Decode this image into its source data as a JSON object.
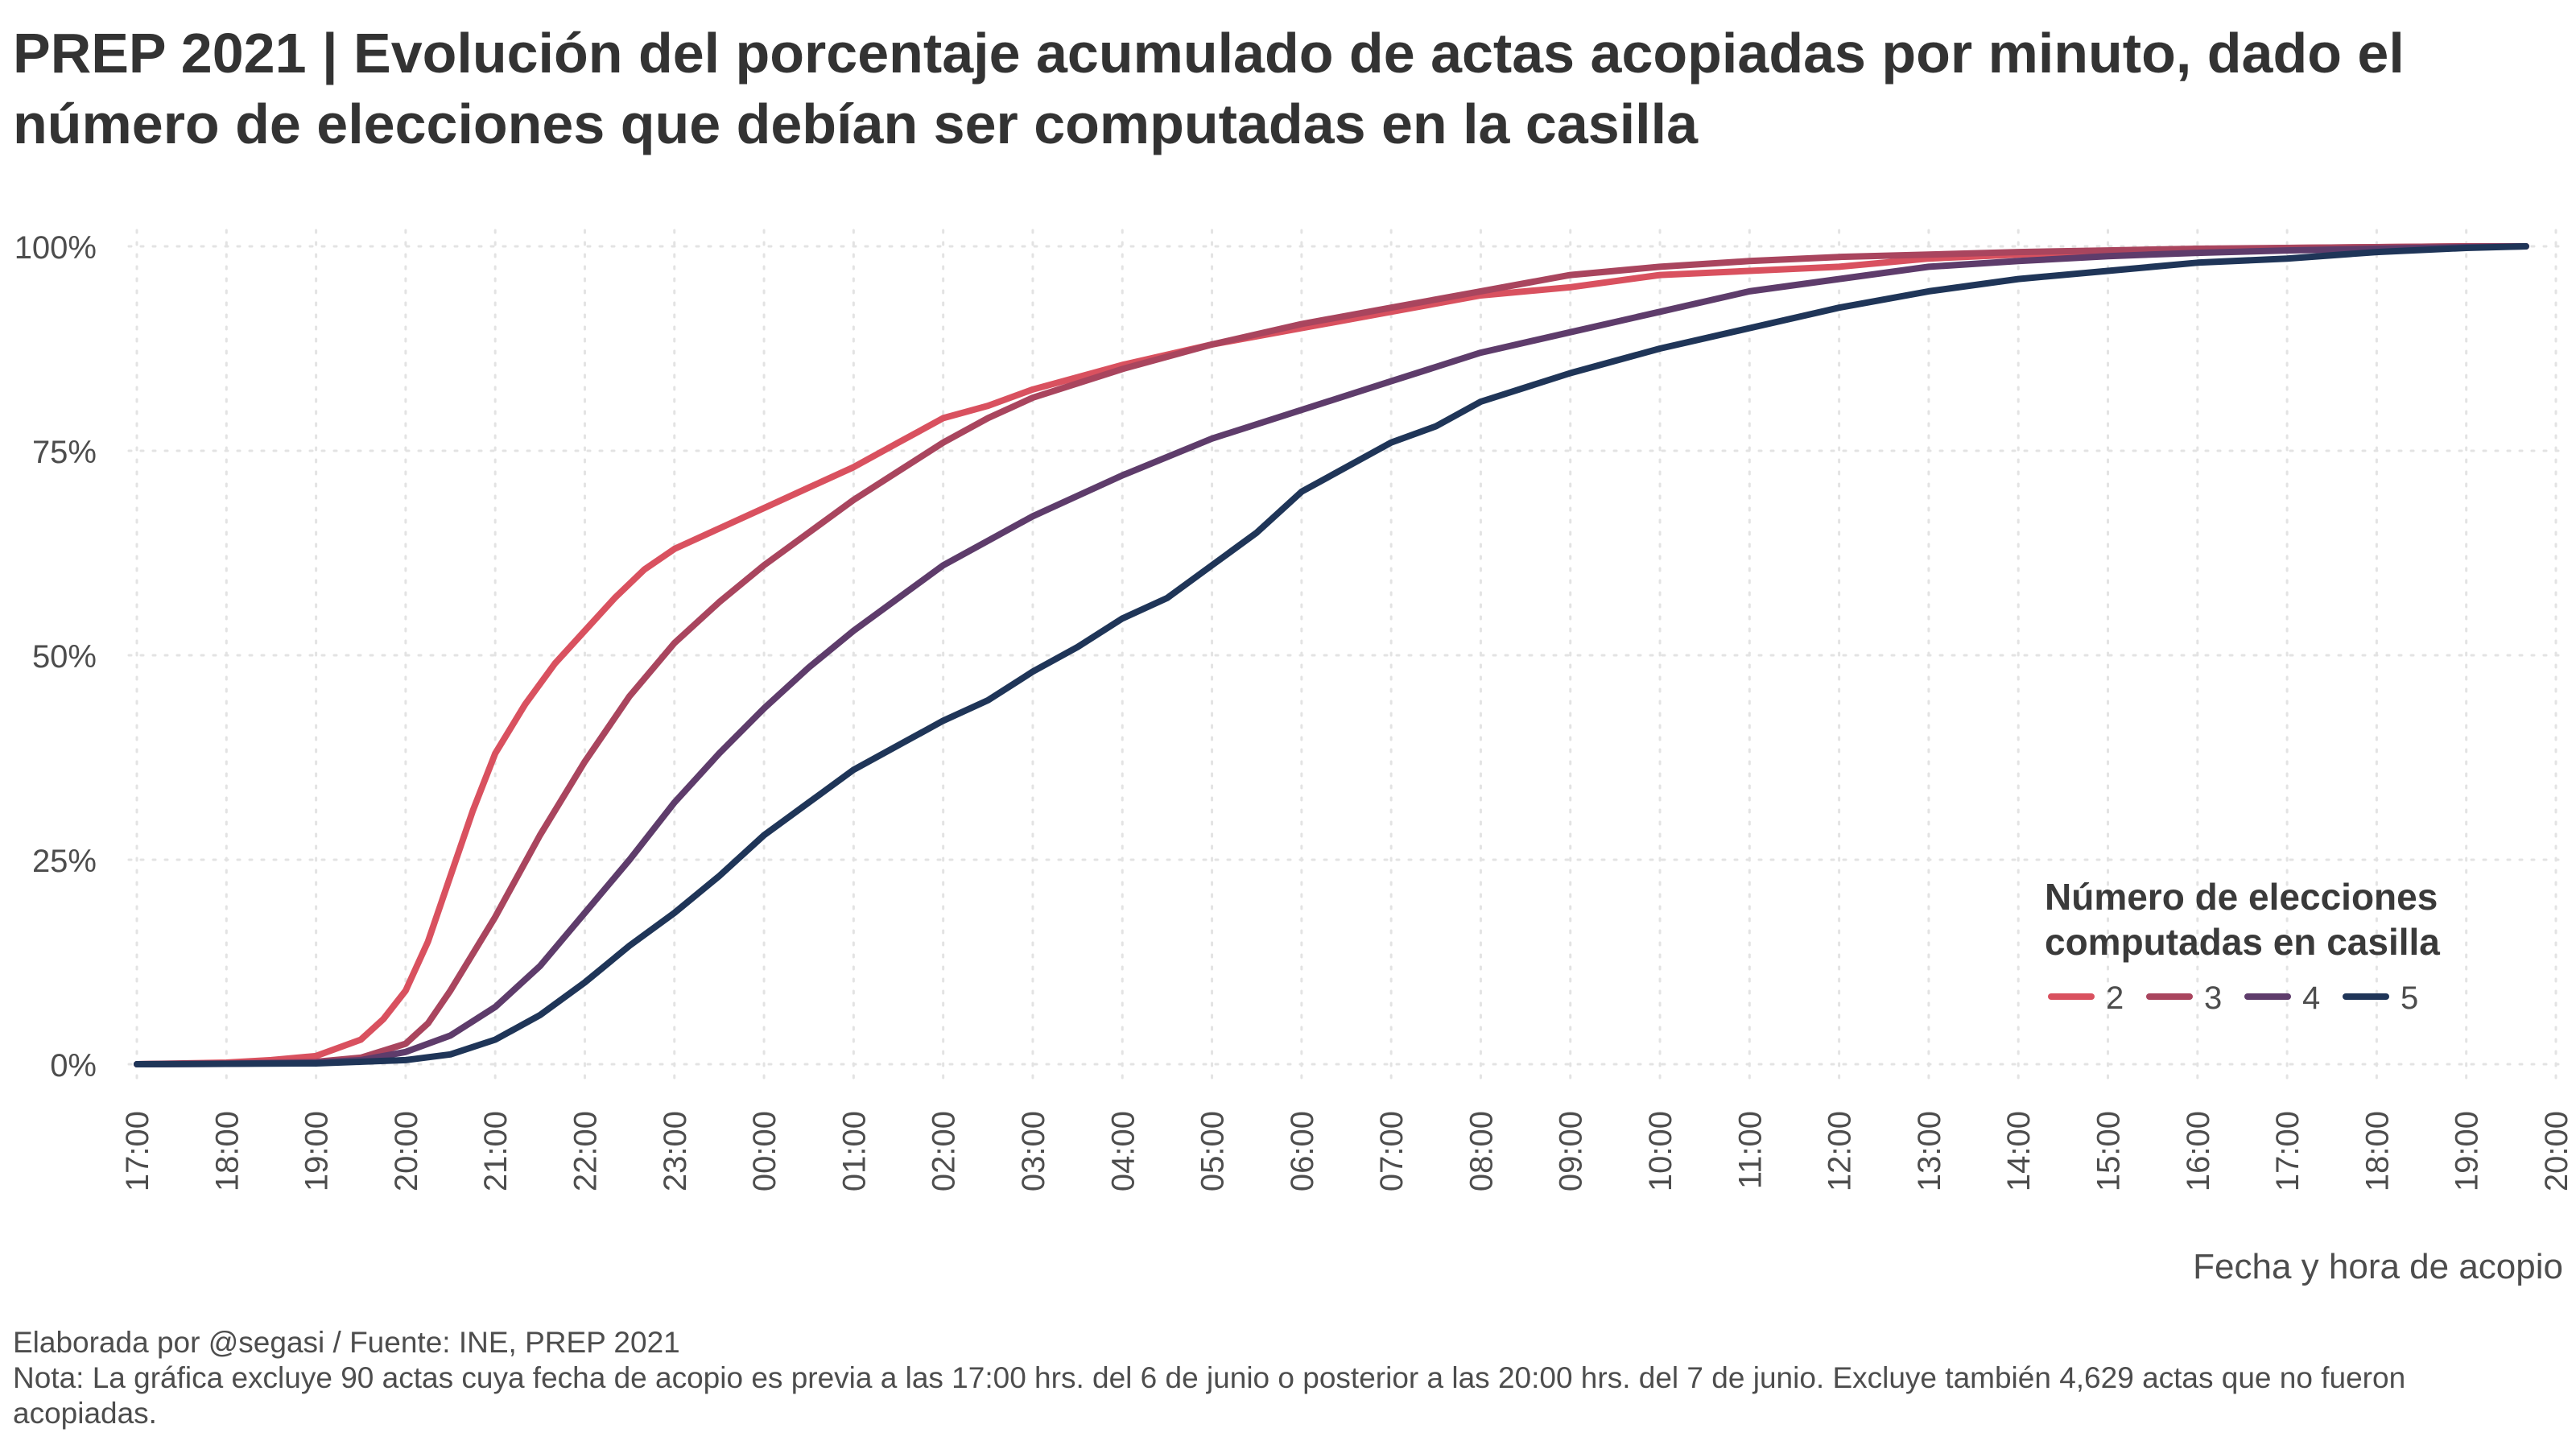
{
  "title": "PREP 2021 | Evolución del porcentaje acumulado de actas acopiadas por minuto, dado el número de elecciones que debían ser computadas en la casilla",
  "footer": {
    "source": "Elaborada por @segasi / Fuente: INE, PREP 2021",
    "note": "Nota: La gráfica excluye 90 actas cuya fecha de acopio es previa a las 17:00 hrs. del 6 de junio o posterior a las 20:00 hrs. del 7 de junio. Excluye también 4,629 actas que no fueron acopiadas."
  },
  "chart_data": {
    "type": "line",
    "xlabel": "Fecha y hora de acopio",
    "ylabel": "",
    "x_tick_labels": [
      "17:00",
      "18:00",
      "19:00",
      "20:00",
      "21:00",
      "22:00",
      "23:00",
      "00:00",
      "01:00",
      "02:00",
      "03:00",
      "04:00",
      "05:00",
      "06:00",
      "07:00",
      "08:00",
      "09:00",
      "10:00",
      "11:00",
      "12:00",
      "13:00",
      "14:00",
      "15:00",
      "16:00",
      "17:00",
      "18:00",
      "19:00",
      "20:00"
    ],
    "y_tick_labels": [
      "0%",
      "25%",
      "50%",
      "75%",
      "100%"
    ],
    "xlim": [
      "2021-06-06 17:00",
      "2021-06-07 20:00"
    ],
    "ylim": [
      0,
      100
    ],
    "grid": true,
    "legend": {
      "title": "Número de elecciones computadas en casilla",
      "position": "bottom-right"
    },
    "series": [
      {
        "name": "2",
        "color": "#d9515f",
        "x": [
          "2021-06-06 17:00",
          "2021-06-06 18:00",
          "2021-06-06 18:30",
          "2021-06-06 19:00",
          "2021-06-06 19:30",
          "2021-06-06 19:45",
          "2021-06-06 20:00",
          "2021-06-06 20:15",
          "2021-06-06 20:30",
          "2021-06-06 20:45",
          "2021-06-06 21:00",
          "2021-06-06 21:20",
          "2021-06-06 21:40",
          "2021-06-06 22:00",
          "2021-06-06 22:20",
          "2021-06-06 22:40",
          "2021-06-06 23:00",
          "2021-06-06 23:30",
          "2021-06-07 00:00",
          "2021-06-07 00:30",
          "2021-06-07 01:00",
          "2021-06-07 01:30",
          "2021-06-07 02:00",
          "2021-06-07 02:30",
          "2021-06-07 03:00",
          "2021-06-07 03:30",
          "2021-06-07 04:00",
          "2021-06-07 05:00",
          "2021-06-07 06:00",
          "2021-06-07 07:00",
          "2021-06-07 08:00",
          "2021-06-07 09:00",
          "2021-06-07 10:00",
          "2021-06-07 11:00",
          "2021-06-07 12:00",
          "2021-06-07 13:00",
          "2021-06-07 14:00",
          "2021-06-07 15:00",
          "2021-06-07 16:00",
          "2021-06-07 17:00",
          "2021-06-07 18:00",
          "2021-06-07 19:00",
          "2021-06-07 19:40"
        ],
        "values": [
          0,
          0.2,
          0.5,
          1,
          3,
          5.5,
          9,
          15,
          23,
          31,
          38,
          44,
          49,
          53,
          57,
          60.5,
          63,
          65.5,
          68,
          70.5,
          73,
          76,
          79,
          80.5,
          82.5,
          84,
          85.5,
          88,
          90,
          92,
          94,
          95,
          96.5,
          97,
          97.5,
          98.5,
          99,
          99.3,
          99.6,
          99.8,
          99.9,
          100,
          100
        ]
      },
      {
        "name": "3",
        "color": "#a9455e",
        "x": [
          "2021-06-06 17:00",
          "2021-06-06 18:00",
          "2021-06-06 19:00",
          "2021-06-06 19:30",
          "2021-06-06 20:00",
          "2021-06-06 20:15",
          "2021-06-06 20:30",
          "2021-06-06 21:00",
          "2021-06-06 21:30",
          "2021-06-06 22:00",
          "2021-06-06 22:30",
          "2021-06-06 23:00",
          "2021-06-06 23:30",
          "2021-06-07 00:00",
          "2021-06-07 00:30",
          "2021-06-07 01:00",
          "2021-06-07 01:30",
          "2021-06-07 02:00",
          "2021-06-07 02:30",
          "2021-06-07 03:00",
          "2021-06-07 04:00",
          "2021-06-07 05:00",
          "2021-06-07 06:00",
          "2021-06-07 07:00",
          "2021-06-07 08:00",
          "2021-06-07 09:00",
          "2021-06-07 10:00",
          "2021-06-07 11:00",
          "2021-06-07 12:00",
          "2021-06-07 13:00",
          "2021-06-07 14:00",
          "2021-06-07 15:00",
          "2021-06-07 16:00",
          "2021-06-07 17:00",
          "2021-06-07 18:00",
          "2021-06-07 19:00",
          "2021-06-07 19:40"
        ],
        "values": [
          0,
          0.1,
          0.3,
          0.8,
          2.5,
          5,
          9,
          18,
          28,
          37,
          45,
          51.5,
          56.5,
          61,
          65,
          69,
          72.5,
          76,
          79,
          81.5,
          85,
          88,
          90.5,
          92.5,
          94.5,
          96.5,
          97.5,
          98.2,
          98.7,
          99,
          99.3,
          99.5,
          99.7,
          99.8,
          99.9,
          100,
          100
        ]
      },
      {
        "name": "4",
        "color": "#5e3c6b",
        "x": [
          "2021-06-06 17:00",
          "2021-06-06 18:00",
          "2021-06-06 19:00",
          "2021-06-06 19:30",
          "2021-06-06 20:00",
          "2021-06-06 20:30",
          "2021-06-06 21:00",
          "2021-06-06 21:30",
          "2021-06-06 22:00",
          "2021-06-06 22:30",
          "2021-06-06 23:00",
          "2021-06-06 23:30",
          "2021-06-07 00:00",
          "2021-06-07 00:30",
          "2021-06-07 01:00",
          "2021-06-07 01:30",
          "2021-06-07 02:00",
          "2021-06-07 03:00",
          "2021-06-07 04:00",
          "2021-06-07 05:00",
          "2021-06-07 06:00",
          "2021-06-07 07:00",
          "2021-06-07 08:00",
          "2021-06-07 09:00",
          "2021-06-07 10:00",
          "2021-06-07 11:00",
          "2021-06-07 12:00",
          "2021-06-07 13:00",
          "2021-06-07 14:00",
          "2021-06-07 15:00",
          "2021-06-07 16:00",
          "2021-06-07 17:00",
          "2021-06-07 18:00",
          "2021-06-07 19:00",
          "2021-06-07 19:40"
        ],
        "values": [
          0,
          0.05,
          0.2,
          0.5,
          1.5,
          3.5,
          7,
          12,
          18.5,
          25,
          32,
          38,
          43.5,
          48.5,
          53,
          57,
          61,
          67,
          72,
          76.5,
          80,
          83.5,
          87,
          89.5,
          92,
          94.5,
          96,
          97.5,
          98.2,
          98.8,
          99.2,
          99.5,
          99.7,
          99.9,
          100
        ]
      },
      {
        "name": "5",
        "color": "#1f3558",
        "x": [
          "2021-06-06 17:00",
          "2021-06-06 18:00",
          "2021-06-06 19:00",
          "2021-06-06 20:00",
          "2021-06-06 20:30",
          "2021-06-06 21:00",
          "2021-06-06 21:30",
          "2021-06-06 22:00",
          "2021-06-06 22:30",
          "2021-06-06 23:00",
          "2021-06-06 23:30",
          "2021-06-07 00:00",
          "2021-06-07 00:30",
          "2021-06-07 01:00",
          "2021-06-07 01:30",
          "2021-06-07 02:00",
          "2021-06-07 02:30",
          "2021-06-07 03:00",
          "2021-06-07 03:30",
          "2021-06-07 04:00",
          "2021-06-07 04:30",
          "2021-06-07 05:00",
          "2021-06-07 05:30",
          "2021-06-07 06:00",
          "2021-06-07 06:30",
          "2021-06-07 07:00",
          "2021-06-07 07:30",
          "2021-06-07 08:00",
          "2021-06-07 09:00",
          "2021-06-07 10:00",
          "2021-06-07 11:00",
          "2021-06-07 12:00",
          "2021-06-07 13:00",
          "2021-06-07 14:00",
          "2021-06-07 15:00",
          "2021-06-07 16:00",
          "2021-06-07 17:00",
          "2021-06-07 18:00",
          "2021-06-07 19:00",
          "2021-06-07 19:40"
        ],
        "values": [
          0,
          0.05,
          0.1,
          0.5,
          1.2,
          3,
          6,
          10,
          14.5,
          18.5,
          23,
          28,
          32,
          36,
          39,
          42,
          44.5,
          48,
          51,
          54.5,
          57,
          61,
          65,
          70,
          73,
          76,
          78,
          81,
          84.5,
          87.5,
          90,
          92.5,
          94.5,
          96,
          97,
          98,
          98.5,
          99.3,
          99.8,
          100
        ]
      }
    ]
  }
}
